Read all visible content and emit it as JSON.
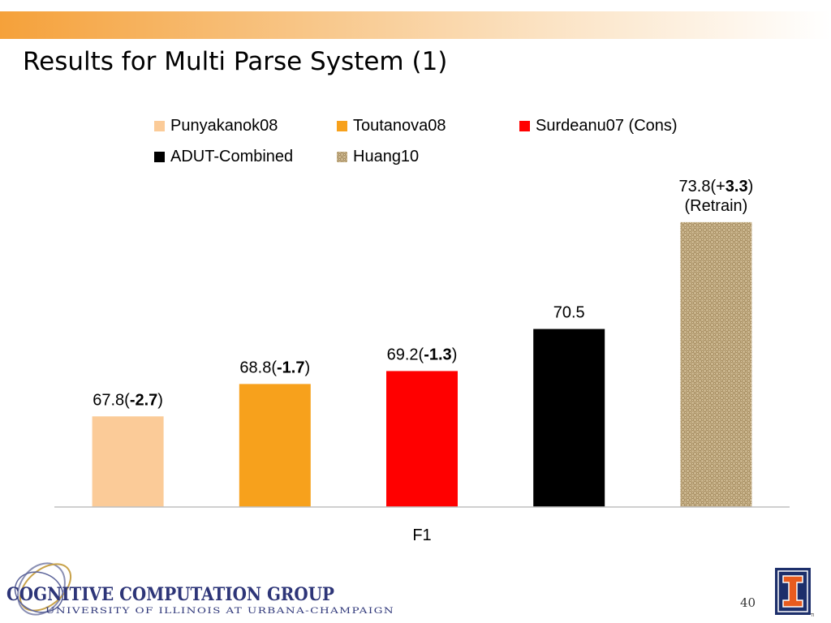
{
  "slide": {
    "title": "Results for Multi Parse System (1)",
    "page_number": "40"
  },
  "footer": {
    "logo_text": "COGNITIVE COMPUTATION GROUP",
    "logo_subtext": "UNIVERSITY OF ILLINOIS AT URBANA-CHAMPAIGN"
  },
  "chart_data": {
    "type": "bar",
    "categories": [
      "F1"
    ],
    "xlabel": "F1",
    "ylabel": "",
    "ylim": [
      65,
      75
    ],
    "grid": false,
    "legend_position": "top",
    "series": [
      {
        "name": "Punyakanok08",
        "values": [
          67.8
        ],
        "color": "#fbcb98",
        "label_parts": [
          {
            "t": "67.8("
          },
          {
            "t": "-2.7",
            "b": true
          },
          {
            "t": ")"
          }
        ]
      },
      {
        "name": "Toutanova08",
        "values": [
          68.8
        ],
        "color": "#f7a11c",
        "label_parts": [
          {
            "t": "68.8("
          },
          {
            "t": "-1.7",
            "b": true
          },
          {
            "t": ")"
          }
        ]
      },
      {
        "name": "Surdeanu07 (Cons)",
        "values": [
          69.2
        ],
        "color": "#ff0000",
        "label_parts": [
          {
            "t": "69.2("
          },
          {
            "t": "-1.3",
            "b": true
          },
          {
            "t": ")"
          }
        ]
      },
      {
        "name": "ADUT-Combined",
        "values": [
          70.5
        ],
        "color": "#000000",
        "label_parts": [
          {
            "t": "70.5"
          }
        ]
      },
      {
        "name": "Huang10",
        "values": [
          73.8
        ],
        "color": "#c9b48c",
        "pattern": "burlap",
        "label_parts": [
          {
            "t": "73.8(+"
          },
          {
            "t": "3.3",
            "b": true
          },
          {
            "t": ")"
          }
        ],
        "label_line2": "(Retrain)"
      }
    ]
  }
}
